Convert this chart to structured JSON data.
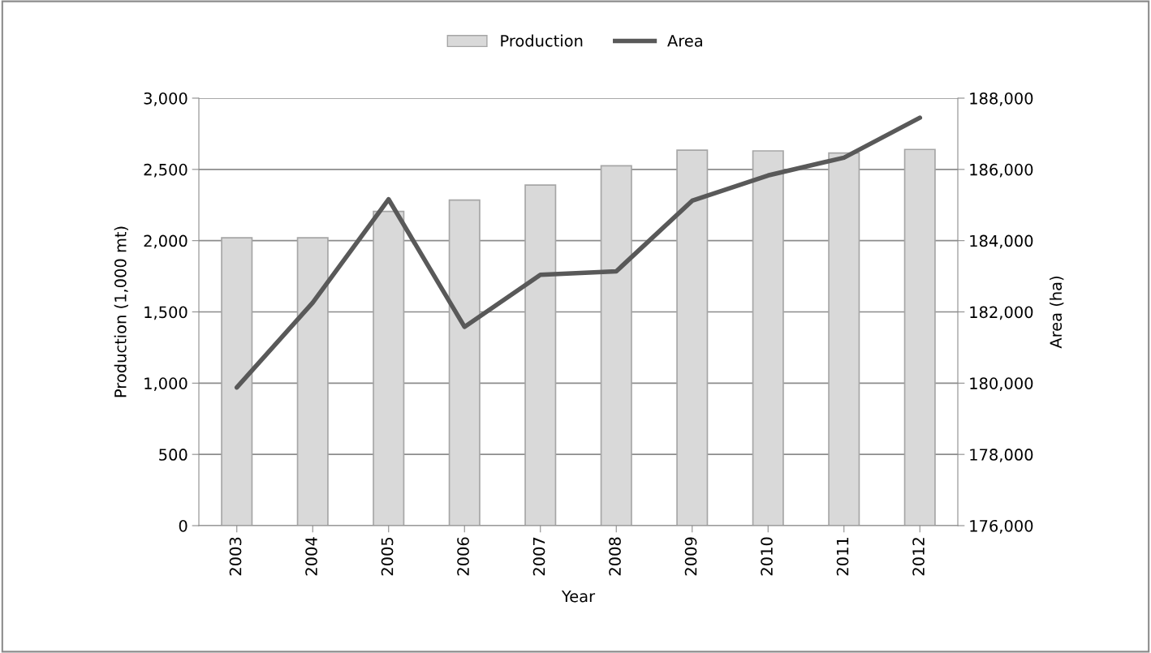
{
  "chart_data": {
    "type": "bar",
    "xlabel": "Year",
    "ylabel": "Production (1,000 mt)",
    "y2label": "Area (ha)",
    "categories": [
      "2003",
      "2004",
      "2005",
      "2006",
      "2007",
      "2008",
      "2009",
      "2010",
      "2011",
      "2012"
    ],
    "series": [
      {
        "name": "Production",
        "color": "#d9d9d9",
        "values": [
          2020,
          2020,
          2205,
          2285,
          2390,
          2525,
          2635,
          2630,
          2615,
          2640
        ]
      },
      {
        "name": "Area",
        "type": "line",
        "axis": "y2",
        "color": "#595959",
        "values": [
          179880,
          182260,
          185160,
          181580,
          183040,
          183140,
          185120,
          185830,
          186330,
          187450
        ]
      }
    ],
    "ylim": [
      0,
      3000
    ],
    "yticks": [
      0,
      {
        "value": 500,
        "label": "500"
      },
      {
        "value": 1000,
        "label": "1,000"
      },
      {
        "value": 1500,
        "label": "1,500"
      },
      {
        "value": 2000,
        "label": "2,000"
      },
      {
        "value": 2500,
        "label": "2,500"
      },
      {
        "value": 3000,
        "label": "3,000"
      }
    ],
    "y2lim": [
      176000,
      188000
    ],
    "y2ticks": [
      {
        "value": 176000,
        "label": "176,000"
      },
      {
        "value": 178000,
        "label": "178,000"
      },
      {
        "value": 180000,
        "label": "180,000"
      },
      {
        "value": 182000,
        "label": "182,000"
      },
      {
        "value": 184000,
        "label": "184,000"
      },
      {
        "value": 186000,
        "label": "186,000"
      },
      {
        "value": 188000,
        "label": "188,000"
      }
    ],
    "grid": "y",
    "legend": "top",
    "marker": "none",
    "line_style": "solid"
  }
}
